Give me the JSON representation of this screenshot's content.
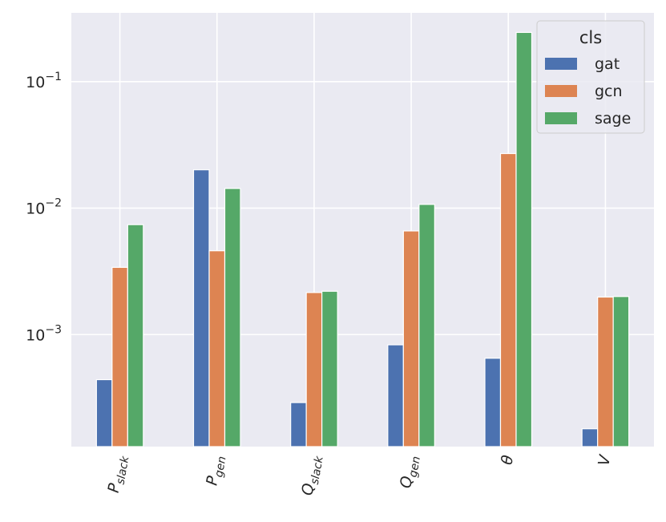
{
  "chart_data": {
    "type": "bar",
    "title": "",
    "xlabel": "",
    "ylabel": "",
    "yscale": "log",
    "ylim": [
      0.00013,
      0.35
    ],
    "grid": true,
    "legend_placement": "top-right",
    "legend_title": "cls",
    "categories": [
      {
        "base": "P",
        "sub": "slack"
      },
      {
        "base": "P",
        "sub": "gen"
      },
      {
        "base": "Q",
        "sub": "slack"
      },
      {
        "base": "Q",
        "sub": "gen"
      },
      {
        "base": "θ",
        "sub": ""
      },
      {
        "base": "V",
        "sub": ""
      }
    ],
    "yticks": [
      {
        "value": 0.001,
        "base": "10",
        "exp": "−3"
      },
      {
        "value": 0.01,
        "base": "10",
        "exp": "−2"
      },
      {
        "value": 0.1,
        "base": "10",
        "exp": "−1"
      }
    ],
    "series": [
      {
        "name": "gat",
        "color": "#4c72b0",
        "values": [
          0.00044,
          0.0201,
          0.00029,
          0.00083,
          0.00065,
          0.00018
        ]
      },
      {
        "name": "gcn",
        "color": "#dd8452",
        "values": [
          0.0034,
          0.0046,
          0.00215,
          0.0066,
          0.027,
          0.00198
        ]
      },
      {
        "name": "sage",
        "color": "#55a868",
        "values": [
          0.0074,
          0.0143,
          0.0022,
          0.0107,
          0.245,
          0.002
        ]
      }
    ],
    "colors": {
      "plot_bg": "#eaeaf2",
      "grid": "#ffffff",
      "text": "#262626"
    }
  }
}
